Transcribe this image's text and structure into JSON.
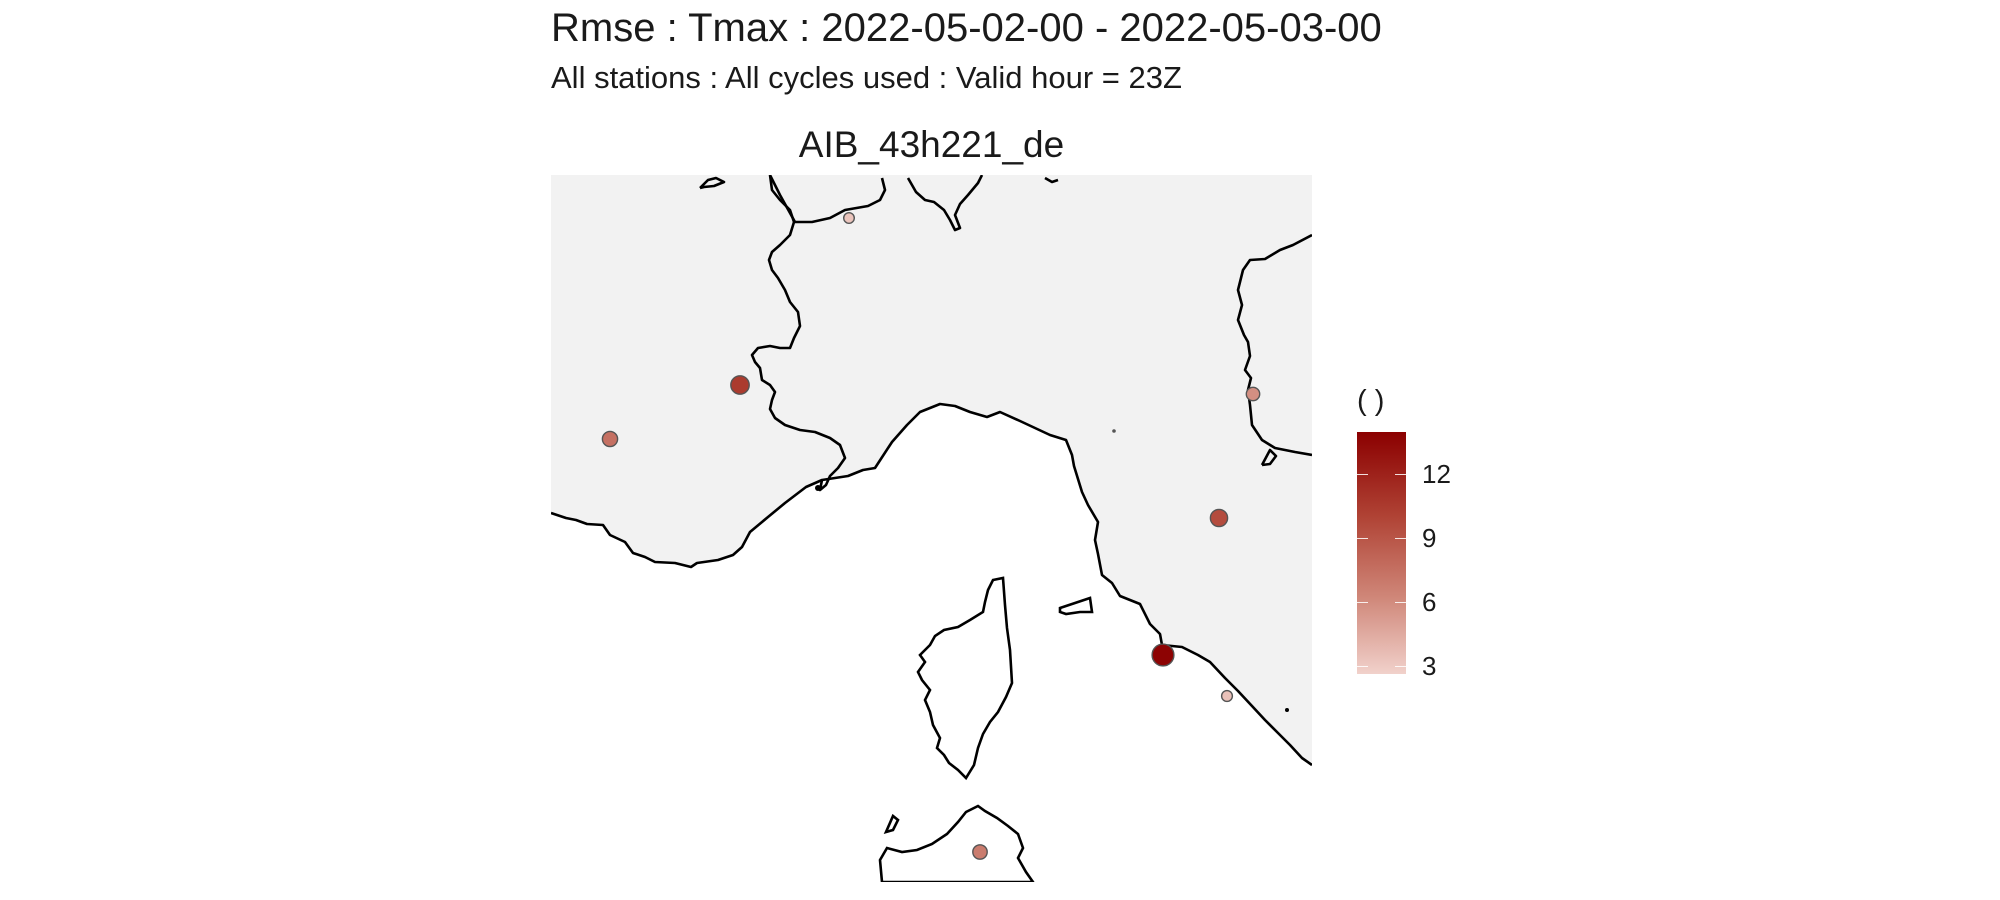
{
  "title": "Rmse : Tmax : 2022-05-02-00 - 2022-05-03-00",
  "subtitle": "All stations : All cycles used : Valid hour = 23Z",
  "panel_title": "AIB_43h221_de",
  "legend": {
    "title": "( )",
    "range": [
      2.6,
      14.0
    ],
    "ticks": [
      {
        "value": 12,
        "label": "12"
      },
      {
        "value": 9,
        "label": "9"
      },
      {
        "value": 6,
        "label": "6"
      },
      {
        "value": 3,
        "label": "3"
      }
    ],
    "colors": {
      "low": "#f1d1cb",
      "high": "#8b0000"
    }
  },
  "map": {
    "land_color": "#ffffff",
    "sea_color": "#f2f2f2",
    "coastline_color": "#000000"
  },
  "stations": [
    {
      "id": "s1",
      "rmse": 3.2
    },
    {
      "id": "s2",
      "rmse": 10.5
    },
    {
      "id": "s3",
      "rmse": 7.5
    },
    {
      "id": "s4",
      "rmse": 5.8
    },
    {
      "id": "s5",
      "rmse": 9.5
    },
    {
      "id": "s6",
      "rmse": 13.8
    },
    {
      "id": "s7",
      "rmse": 3.4
    },
    {
      "id": "s8",
      "rmse": 6.8
    }
  ]
}
